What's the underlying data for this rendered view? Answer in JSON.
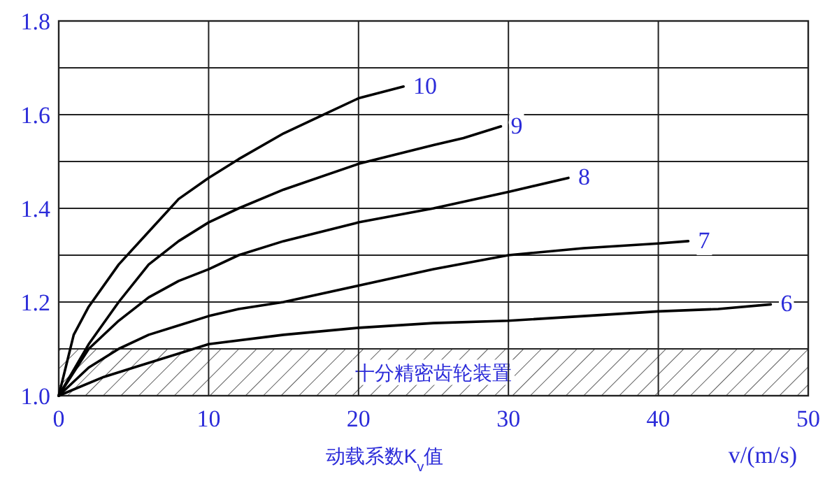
{
  "chart_data": {
    "type": "line",
    "xlabel": "v/(m/s)",
    "annotations": [
      "动载系数K$_{v}$值"
    ],
    "xlim": [
      0,
      50
    ],
    "xticks": [
      0,
      10,
      20,
      30,
      40,
      50
    ],
    "ylim": [
      1.0,
      1.8
    ],
    "yticks": [
      {
        "value": 1.0,
        "label": "1.0"
      },
      {
        "value": 1.1,
        "label": null
      },
      {
        "value": 1.2,
        "label": "1.2"
      },
      {
        "value": 1.3,
        "label": null
      },
      {
        "value": 1.4,
        "label": "1.4"
      },
      {
        "value": 1.5,
        "label": null
      },
      {
        "value": 1.6,
        "label": "1.6"
      },
      {
        "value": 1.7,
        "label": null
      },
      {
        "value": 1.8,
        "label": "1.8"
      }
    ],
    "grid": true,
    "bands": [
      {
        "axis": "y",
        "from": 1.0,
        "to": 1.1,
        "label": "十分精密齿轮装置"
      }
    ],
    "series": [
      {
        "name": "10",
        "color": "#000000",
        "x": [
          0,
          1,
          2,
          4,
          6,
          8,
          10,
          12,
          15,
          18,
          20,
          23
        ],
        "values": [
          1.0,
          1.13,
          1.19,
          1.28,
          1.35,
          1.42,
          1.465,
          1.505,
          1.56,
          1.605,
          1.635,
          1.66
        ]
      },
      {
        "name": "9",
        "color": "#000000",
        "x": [
          0,
          2,
          4,
          6,
          8,
          10,
          12,
          15,
          20,
          25,
          27,
          29.5
        ],
        "values": [
          1.0,
          1.11,
          1.2,
          1.28,
          1.33,
          1.37,
          1.4,
          1.44,
          1.495,
          1.535,
          1.55,
          1.575
        ]
      },
      {
        "name": "8",
        "color": "#000000",
        "x": [
          0,
          2,
          4,
          6,
          8,
          10,
          12,
          15,
          20,
          25,
          30,
          34
        ],
        "values": [
          1.0,
          1.1,
          1.16,
          1.21,
          1.245,
          1.27,
          1.3,
          1.33,
          1.37,
          1.4,
          1.435,
          1.465
        ]
      },
      {
        "name": "7",
        "color": "#000000",
        "x": [
          0,
          2,
          4,
          6,
          8,
          10,
          12,
          15,
          20,
          25,
          30,
          35,
          40,
          42
        ],
        "values": [
          1.0,
          1.06,
          1.1,
          1.13,
          1.15,
          1.17,
          1.185,
          1.2,
          1.235,
          1.27,
          1.3,
          1.315,
          1.325,
          1.33
        ]
      },
      {
        "name": "6",
        "color": "#000000",
        "x": [
          0,
          3,
          5,
          8,
          10,
          15,
          20,
          25,
          30,
          35,
          40,
          44,
          47.5
        ],
        "values": [
          1.0,
          1.04,
          1.06,
          1.09,
          1.11,
          1.13,
          1.145,
          1.155,
          1.16,
          1.17,
          1.18,
          1.185,
          1.195
        ]
      }
    ]
  }
}
